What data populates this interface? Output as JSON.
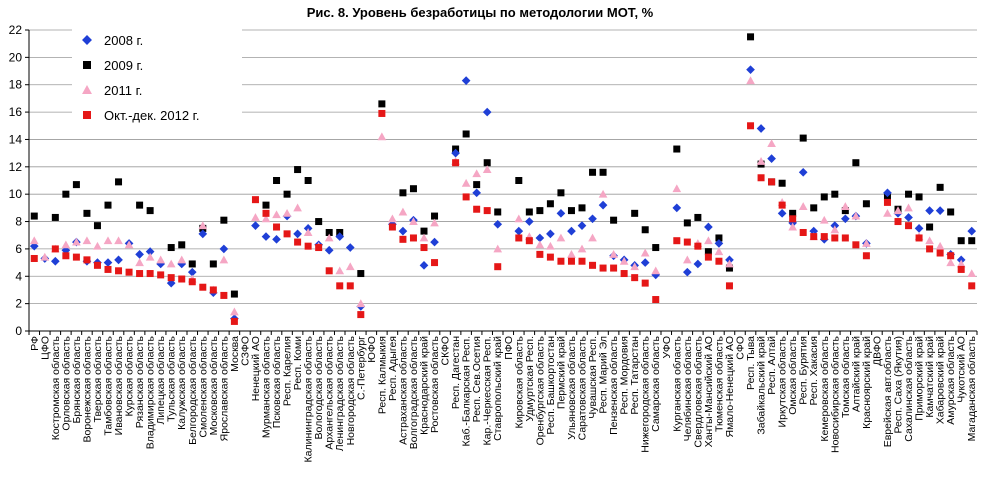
{
  "chart_data": {
    "type": "scatter",
    "title": "Рис. 8. Уровень безработицы по методологии МОТ, %",
    "xlabel": "",
    "ylabel": "",
    "ylim": [
      0,
      22
    ],
    "yticks": [
      0,
      2,
      4,
      6,
      8,
      10,
      12,
      14,
      16,
      18,
      20,
      22
    ],
    "grid": "horizontal",
    "legend_position": "top-left",
    "categories": [
      "РФ",
      "ЦФО",
      "Костромская область",
      "Орловская область",
      "Брянская область",
      "Воронежская область",
      "Тверская область",
      "Тамбовская область",
      "Ивановская область",
      "Курская область",
      "Рязанская область",
      "Владимирская область",
      "Липецкая область",
      "Тульская область",
      "Калужская область",
      "Белгородская область",
      "Смоленская область",
      "Московская область",
      "Ярославская область",
      "Москва",
      "СЗФО",
      "Ненецкий АО",
      "Мурманская область",
      "Псковская область",
      "Респ. Карелия",
      "Респ. Коми",
      "Калининградская область",
      "Вологодская область",
      "Архангельская область",
      "Ленинградская область",
      "Новгородская область",
      "С.-Петербург",
      "ЮФО",
      "Респ. Калмыкия",
      "Респ. Адыгея",
      "Астраханская область",
      "Волгоградская область",
      "Краснодарский край",
      "Ростовская область",
      "СКФО",
      "Респ. Дагестан",
      "Каб.-Балкарская Респ.",
      "Респ. Сев.Осетия",
      "Кар.-Черкесская Респ.",
      "Ставропольский край",
      "ПФО",
      "Кировская область",
      "Удмуртская Респ.",
      "Оренбургская область",
      "Респ. Башкортостан",
      "Пермский край",
      "Ульяновская область",
      "Саратовская область",
      "Чувашская Респ.",
      "Респ. Марий Эл",
      "Пензенская область",
      "Респ. Мордовия",
      "Респ. Татарстан",
      "Нижегородская область",
      "Самарская область",
      "УФО",
      "Курганская область",
      "Челябинская область",
      "Свердловская область",
      "Ханты-Мансийский АО",
      "Тюменская область",
      "Ямало-Ненецкий АО",
      "СФО",
      "Респ. Тыва",
      "Забайкальский край",
      "Респ. Алтай",
      "Иркутская область",
      "Омская область",
      "Респ. Бурятия",
      "Респ. Хакасия",
      "Кемеровская область",
      "Новосибирская область",
      "Томская область",
      "Алтайский край",
      "Красноярский край",
      "ДВФО",
      "Еврейская авт.область",
      "Респ. Саха (Якутия)",
      "Сахалинская область",
      "Приморский край",
      "Камчатский край",
      "Хабаровский край",
      "Амурская область",
      "Чукотский АО",
      "Магаданская область"
    ],
    "series": [
      {
        "name": "2008 г.",
        "marker": "diamond",
        "color": "#1f3fd6",
        "values": [
          6.2,
          5.3,
          5.1,
          5.9,
          6.5,
          5.1,
          5.0,
          5.0,
          5.2,
          6.4,
          5.6,
          5.8,
          4.9,
          3.5,
          4.9,
          4.3,
          7.1,
          2.8,
          6.0,
          0.9,
          null,
          7.7,
          6.9,
          6.7,
          8.4,
          7.1,
          7.5,
          6.3,
          5.9,
          6.9,
          6.1,
          1.8,
          null,
          null,
          7.8,
          7.3,
          8.1,
          4.8,
          6.5,
          null,
          13.0,
          18.3,
          10.1,
          16.0,
          7.8,
          null,
          7.3,
          8.0,
          6.8,
          7.1,
          8.6,
          7.3,
          7.7,
          8.2,
          9.2,
          5.5,
          5.2,
          4.8,
          5.0,
          4.1,
          null,
          9.0,
          4.3,
          4.9,
          7.6,
          6.4,
          5.2,
          null,
          19.1,
          14.8,
          12.6,
          8.6,
          7.9,
          11.6,
          7.3,
          6.7,
          7.7,
          8.2,
          8.4,
          6.4,
          null,
          10.1,
          8.6,
          8.3,
          7.5,
          8.8,
          8.8,
          5.6,
          5.2,
          7.3
        ]
      },
      {
        "name": "2009 г.",
        "marker": "square",
        "color": "#000000",
        "values": [
          8.4,
          null,
          8.3,
          10.0,
          10.7,
          8.6,
          7.7,
          9.2,
          10.9,
          null,
          9.2,
          8.8,
          null,
          6.1,
          6.3,
          4.9,
          7.5,
          4.9,
          8.1,
          2.7,
          null,
          null,
          9.2,
          11.0,
          10.0,
          11.8,
          11.0,
          8.0,
          7.2,
          7.2,
          null,
          4.2,
          null,
          16.6,
          null,
          10.1,
          10.4,
          7.3,
          8.4,
          null,
          13.3,
          14.4,
          10.7,
          12.3,
          8.7,
          null,
          11.0,
          8.7,
          8.8,
          9.3,
          10.1,
          8.8,
          9.0,
          11.6,
          11.6,
          8.1,
          null,
          8.6,
          7.4,
          6.1,
          null,
          13.3,
          7.9,
          8.3,
          5.8,
          6.8,
          4.6,
          null,
          21.5,
          12.2,
          10.9,
          10.8,
          8.6,
          14.1,
          9.0,
          9.8,
          10.0,
          8.8,
          12.3,
          9.3,
          null,
          9.8,
          8.9,
          10.0,
          9.8,
          7.6,
          10.5,
          8.7,
          6.6,
          6.6
        ]
      },
      {
        "name": "2011 г.",
        "marker": "triangle",
        "color": "#f5a6c4",
        "values": [
          6.6,
          5.4,
          6.0,
          6.3,
          6.5,
          6.6,
          6.2,
          6.6,
          6.6,
          6.3,
          5.0,
          5.4,
          5.2,
          4.9,
          5.2,
          3.8,
          7.7,
          3.0,
          5.2,
          1.4,
          null,
          8.3,
          8.2,
          8.5,
          8.6,
          9.0,
          7.2,
          6.2,
          6.8,
          4.4,
          4.7,
          2.0,
          null,
          14.2,
          8.2,
          8.7,
          8.0,
          6.8,
          7.9,
          null,
          12.4,
          10.8,
          11.5,
          11.8,
          6.0,
          null,
          8.2,
          6.9,
          6.3,
          6.2,
          6.8,
          5.6,
          6.0,
          6.8,
          10.0,
          5.6,
          5.1,
          4.7,
          5.7,
          4.4,
          null,
          10.4,
          5.2,
          6.4,
          6.6,
          5.8,
          4.9,
          null,
          18.3,
          12.4,
          13.7,
          9.4,
          7.6,
          9.1,
          6.9,
          8.1,
          7.4,
          9.1,
          8.4,
          6.4,
          null,
          8.6,
          8.8,
          9.0,
          6.9,
          6.6,
          6.2,
          5.0,
          4.9,
          4.2
        ]
      },
      {
        "name": "Окт.-дек. 2012 г.",
        "marker": "square",
        "color": "#e51717",
        "values": [
          5.3,
          null,
          6.0,
          5.5,
          5.4,
          5.2,
          4.8,
          4.5,
          4.4,
          4.3,
          4.2,
          4.2,
          4.1,
          3.9,
          3.8,
          3.6,
          3.2,
          3.0,
          2.6,
          0.7,
          null,
          9.6,
          8.6,
          7.6,
          7.1,
          6.5,
          6.2,
          6.1,
          4.4,
          3.3,
          3.3,
          1.2,
          null,
          15.9,
          7.6,
          6.7,
          6.8,
          6.1,
          5.0,
          null,
          12.3,
          9.8,
          8.9,
          8.8,
          4.7,
          null,
          6.8,
          6.6,
          5.6,
          5.4,
          5.1,
          5.1,
          5.1,
          4.8,
          4.6,
          4.6,
          4.2,
          3.9,
          3.5,
          2.3,
          null,
          6.6,
          6.5,
          6.2,
          5.4,
          5.1,
          3.3,
          null,
          15.0,
          11.2,
          10.9,
          9.2,
          8.2,
          7.2,
          6.9,
          6.9,
          6.8,
          6.8,
          6.3,
          5.5,
          null,
          9.4,
          8.0,
          7.7,
          6.8,
          6.0,
          5.7,
          5.5,
          4.5,
          3.3
        ]
      }
    ]
  }
}
